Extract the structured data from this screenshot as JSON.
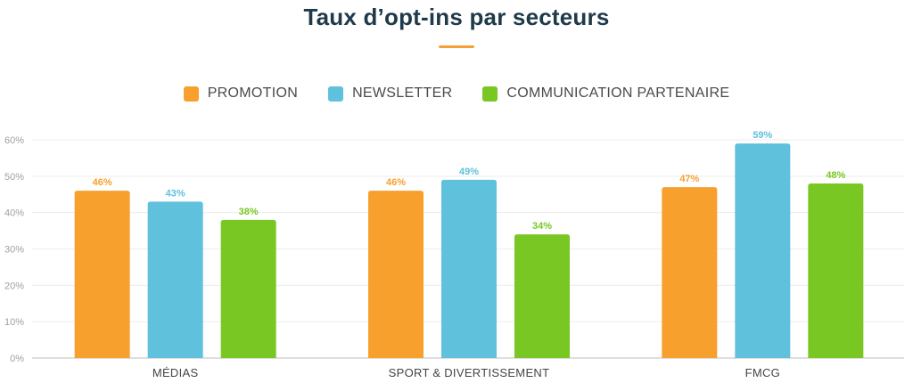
{
  "chart_data": {
    "type": "bar",
    "title": "Taux d’opt-ins par secteurs",
    "categories": [
      "MÉDIAS",
      "SPORT & DIVERTISSEMENT",
      "FMCG"
    ],
    "series": [
      {
        "name": "PROMOTION",
        "color": "#f7a02e",
        "values": [
          46,
          46,
          47
        ]
      },
      {
        "name": "NEWSLETTER",
        "color": "#5fc1db",
        "values": [
          43,
          49,
          59
        ]
      },
      {
        "name": "COMMUNICATION PARTENAIRE",
        "color": "#79c723",
        "values": [
          38,
          34,
          48
        ]
      }
    ],
    "ylim": [
      0,
      60
    ],
    "yticks": [
      "0%",
      "10%",
      "20%",
      "30%",
      "40%",
      "50%",
      "60%"
    ],
    "value_suffix": "%",
    "grid": true,
    "legend_position": "top-center",
    "xlabel": "",
    "ylabel": ""
  }
}
